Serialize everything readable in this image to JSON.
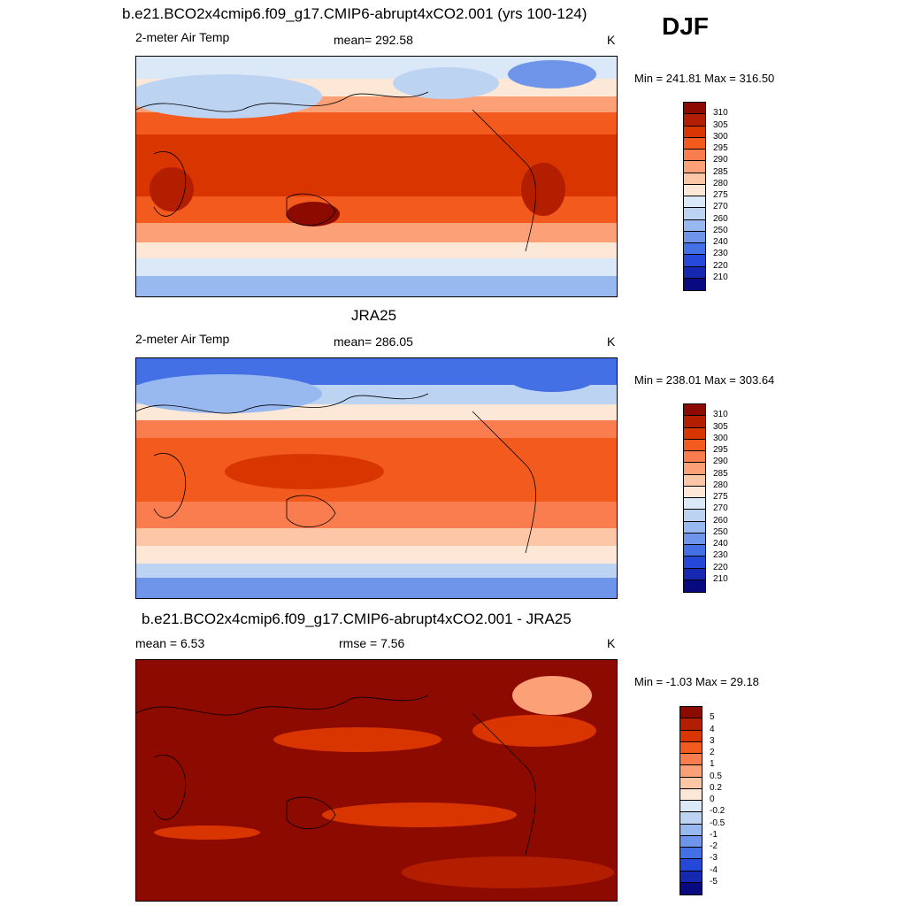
{
  "season": "DJF",
  "panels": [
    {
      "title": "b.e21.BCO2x4cmip6.f09_g17.CMIP6-abrupt4xCO2.001 (yrs 100-124)",
      "left_label": "2-meter Air Temp",
      "center_label": "mean= 292.58",
      "units": "K",
      "minmax": "Min = 241.81 Max = 316.50",
      "field": "model"
    },
    {
      "title": "JRA25",
      "left_label": "2-meter Air Temp",
      "center_label": "mean= 286.05",
      "units": "K",
      "minmax": "Min = 238.01 Max = 303.64",
      "field": "obs"
    },
    {
      "title": "b.e21.BCO2x4cmip6.f09_g17.CMIP6-abrupt4xCO2.001 - JRA25",
      "left_label": "mean =   6.53",
      "center_label": "rmse =   7.56",
      "units": "K",
      "minmax": "Min =  -1.03 Max =  29.18",
      "field": "diff"
    }
  ],
  "temp_colorbar": {
    "labels": [
      "310",
      "305",
      "300",
      "295",
      "290",
      "285",
      "280",
      "275",
      "270",
      "260",
      "250",
      "240",
      "230",
      "220",
      "210"
    ],
    "colors": [
      "#8c0a00",
      "#b31e00",
      "#d93500",
      "#f25a1e",
      "#fa7d50",
      "#fca078",
      "#fdc6a6",
      "#fde7d6",
      "#dbe8f7",
      "#bcd3f2",
      "#98b9f0",
      "#6f95eb",
      "#4470e6",
      "#2648d9",
      "#1628b0",
      "#0a0a80"
    ]
  },
  "diff_colorbar": {
    "labels": [
      "5",
      "4",
      "3",
      "2",
      "1",
      "0.5",
      "0.2",
      "0",
      "-0.2",
      "-0.5",
      "-1",
      "-2",
      "-3",
      "-4",
      "-5"
    ],
    "colors": [
      "#8c0a00",
      "#b31e00",
      "#d93500",
      "#f25a1e",
      "#fa7d50",
      "#fca078",
      "#fdc6a6",
      "#fde7d6",
      "#dbe8f7",
      "#bcd3f2",
      "#98b9f0",
      "#6f95eb",
      "#4470e6",
      "#2648d9",
      "#1628b0",
      "#0a0a80"
    ]
  }
}
